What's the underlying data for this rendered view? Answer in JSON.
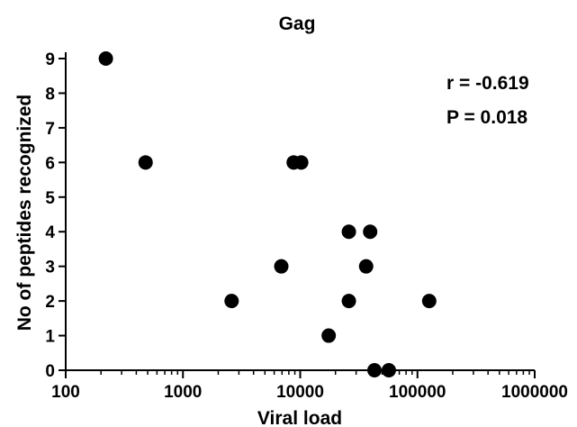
{
  "chart_data": {
    "type": "scatter",
    "title": "Gag",
    "xlabel": "Viral load",
    "ylabel": "No of peptides recognized",
    "x_scale": "log",
    "xlim": [
      100,
      1000000
    ],
    "ylim": [
      0,
      9
    ],
    "x_ticks": [
      "100",
      "1000",
      "10000",
      "100000",
      "1000000"
    ],
    "y_ticks": [
      "0",
      "1",
      "2",
      "3",
      "4",
      "5",
      "6",
      "7",
      "8",
      "9"
    ],
    "grid": false,
    "annotations": [
      "r = -0.619",
      "P = 0.018"
    ],
    "marker_color": "#000000",
    "points": [
      {
        "x": 220,
        "y": 9
      },
      {
        "x": 480,
        "y": 6
      },
      {
        "x": 8800,
        "y": 6
      },
      {
        "x": 10200,
        "y": 6
      },
      {
        "x": 2600,
        "y": 2
      },
      {
        "x": 6900,
        "y": 3
      },
      {
        "x": 17500,
        "y": 1
      },
      {
        "x": 26000,
        "y": 4
      },
      {
        "x": 39500,
        "y": 4
      },
      {
        "x": 36500,
        "y": 3
      },
      {
        "x": 26000,
        "y": 2
      },
      {
        "x": 126000,
        "y": 2
      },
      {
        "x": 43000,
        "y": 0
      },
      {
        "x": 57000,
        "y": 0
      }
    ]
  }
}
